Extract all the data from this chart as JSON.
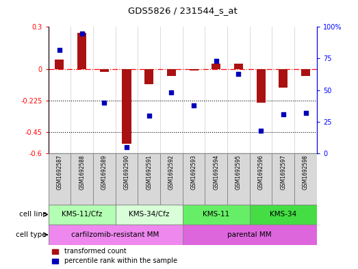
{
  "title": "GDS5826 / 231544_s_at",
  "samples": [
    "GSM1692587",
    "GSM1692588",
    "GSM1692589",
    "GSM1692590",
    "GSM1692591",
    "GSM1692592",
    "GSM1692593",
    "GSM1692594",
    "GSM1692595",
    "GSM1692596",
    "GSM1692597",
    "GSM1692598"
  ],
  "transformed_count": [
    0.07,
    0.26,
    -0.02,
    -0.53,
    -0.11,
    -0.05,
    -0.01,
    0.04,
    0.04,
    -0.24,
    -0.13,
    -0.05
  ],
  "percentile_rank": [
    82,
    95,
    40,
    5,
    30,
    48,
    38,
    73,
    63,
    18,
    31,
    32
  ],
  "ylim_left": [
    -0.6,
    0.3
  ],
  "ylim_right": [
    0,
    100
  ],
  "yticks_left": [
    -0.6,
    -0.45,
    -0.225,
    0,
    0.3
  ],
  "yticks_left_labels": [
    "-0.6",
    "-0.45",
    "-0.225",
    "0",
    "0.3"
  ],
  "yticks_right": [
    0,
    25,
    50,
    75,
    100
  ],
  "yticks_right_labels": [
    "0",
    "25",
    "50",
    "75",
    "100%"
  ],
  "hline_y": 0,
  "dotted_lines": [
    -0.225,
    -0.45
  ],
  "cell_line_groups": [
    {
      "label": "KMS-11/Cfz",
      "start": 0,
      "end": 3,
      "color": "#b3ffb3"
    },
    {
      "label": "KMS-34/Cfz",
      "start": 3,
      "end": 6,
      "color": "#d9ffd9"
    },
    {
      "label": "KMS-11",
      "start": 6,
      "end": 9,
      "color": "#66ee66"
    },
    {
      "label": "KMS-34",
      "start": 9,
      "end": 12,
      "color": "#44dd44"
    }
  ],
  "cell_type_groups": [
    {
      "label": "carfilzomib-resistant MM",
      "start": 0,
      "end": 6,
      "color": "#ee88ee"
    },
    {
      "label": "parental MM",
      "start": 6,
      "end": 12,
      "color": "#dd66dd"
    }
  ],
  "bar_color": "#aa1111",
  "dot_color": "#0000bb",
  "background_color": "#ffffff",
  "bar_width": 0.4,
  "legend_items": [
    {
      "label": "transformed count",
      "color": "#aa1111"
    },
    {
      "label": "percentile rank within the sample",
      "color": "#0000bb"
    }
  ]
}
